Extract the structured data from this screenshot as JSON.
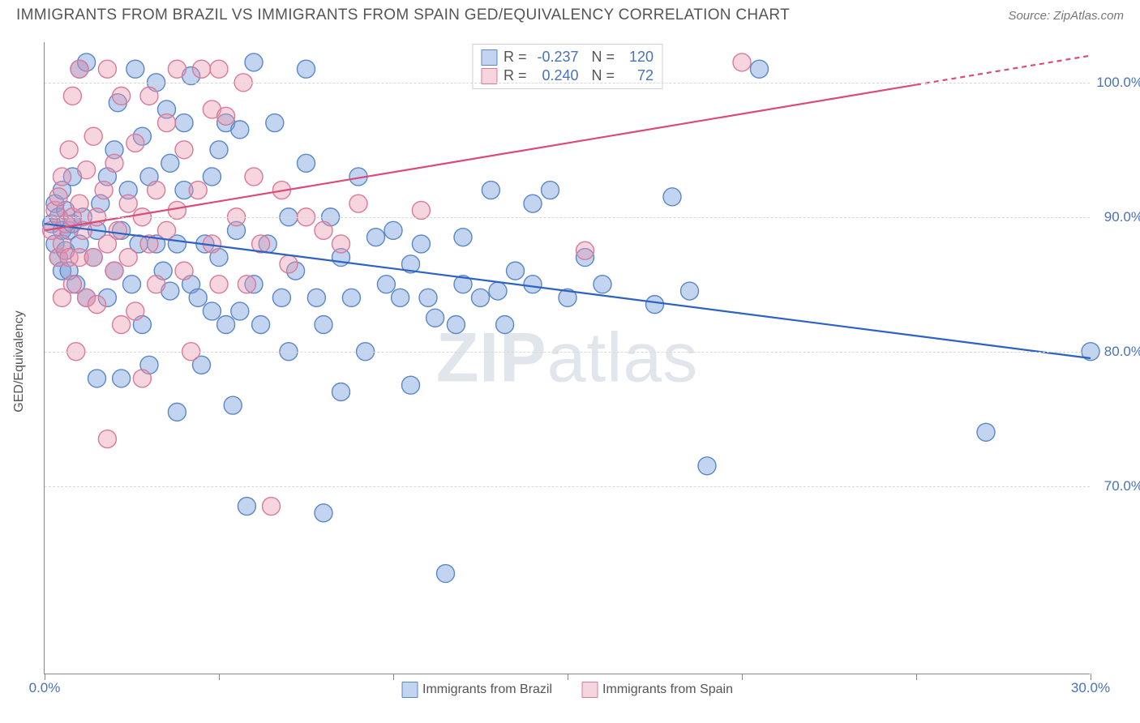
{
  "title": "IMMIGRANTS FROM BRAZIL VS IMMIGRANTS FROM SPAIN GED/EQUIVALENCY CORRELATION CHART",
  "source": "Source: ZipAtlas.com",
  "watermark": {
    "part1": "ZIP",
    "part2": "atlas"
  },
  "ylabel": "GED/Equivalency",
  "chart": {
    "type": "scatter",
    "background_color": "#ffffff",
    "grid_color": "#d8d8d8",
    "axis_color": "#888888",
    "text_color": "#555555",
    "value_color": "#4a72b8",
    "marker_radius": 11,
    "marker_stroke_width": 1.4,
    "line_width": 2.2,
    "xlim": [
      0,
      30
    ],
    "ylim": [
      56,
      103
    ],
    "x_ticks": [
      0,
      5,
      10,
      15,
      20,
      25,
      30
    ],
    "x_tick_labels": {
      "0": "0.0%",
      "30": "30.0%"
    },
    "y_gridlines": [
      70,
      80,
      90,
      100
    ],
    "y_tick_labels": {
      "70": "70.0%",
      "80": "80.0%",
      "90": "90.0%",
      "100": "100.0%"
    },
    "series": [
      {
        "name": "Immigrants from Brazil",
        "fill": "rgba(120,160,220,0.45)",
        "stroke": "#5b87c7",
        "line_color": "#2c62c0",
        "R": "-0.237",
        "N": "120",
        "trend": {
          "x1": 0,
          "y1": 89.5,
          "x2": 30,
          "y2": 79.5
        },
        "points": [
          [
            0.2,
            89.5
          ],
          [
            0.3,
            91
          ],
          [
            0.3,
            88
          ],
          [
            0.4,
            90
          ],
          [
            0.4,
            87
          ],
          [
            0.5,
            89
          ],
          [
            0.5,
            86
          ],
          [
            0.5,
            92
          ],
          [
            0.6,
            90.5
          ],
          [
            0.6,
            87.5
          ],
          [
            0.7,
            89
          ],
          [
            0.7,
            86
          ],
          [
            0.8,
            93
          ],
          [
            0.8,
            89.5
          ],
          [
            0.9,
            85
          ],
          [
            1.0,
            88
          ],
          [
            1.0,
            101
          ],
          [
            1.1,
            90
          ],
          [
            1.2,
            84
          ],
          [
            1.2,
            101.5
          ],
          [
            1.4,
            87
          ],
          [
            1.5,
            89
          ],
          [
            1.5,
            78
          ],
          [
            1.6,
            91
          ],
          [
            1.8,
            93
          ],
          [
            1.8,
            84
          ],
          [
            2.0,
            95
          ],
          [
            2.0,
            86
          ],
          [
            2.1,
            98.5
          ],
          [
            2.2,
            89
          ],
          [
            2.2,
            78
          ],
          [
            2.4,
            92
          ],
          [
            2.5,
            85
          ],
          [
            2.6,
            101
          ],
          [
            2.7,
            88
          ],
          [
            2.8,
            96
          ],
          [
            2.8,
            82
          ],
          [
            3.0,
            93
          ],
          [
            3.0,
            79
          ],
          [
            3.2,
            88
          ],
          [
            3.2,
            100
          ],
          [
            3.4,
            86
          ],
          [
            3.5,
            98
          ],
          [
            3.6,
            84.5
          ],
          [
            3.6,
            94
          ],
          [
            3.8,
            75.5
          ],
          [
            3.8,
            88
          ],
          [
            4.0,
            92
          ],
          [
            4.0,
            97
          ],
          [
            4.2,
            85
          ],
          [
            4.2,
            100.5
          ],
          [
            4.4,
            84
          ],
          [
            4.5,
            79
          ],
          [
            4.6,
            88
          ],
          [
            4.8,
            93
          ],
          [
            4.8,
            83
          ],
          [
            5.0,
            95
          ],
          [
            5.0,
            87
          ],
          [
            5.2,
            82
          ],
          [
            5.2,
            97
          ],
          [
            5.4,
            76
          ],
          [
            5.5,
            89
          ],
          [
            5.6,
            83
          ],
          [
            5.6,
            96.5
          ],
          [
            5.8,
            68.5
          ],
          [
            6.0,
            85
          ],
          [
            6.0,
            101.5
          ],
          [
            6.2,
            82
          ],
          [
            6.4,
            88
          ],
          [
            6.6,
            97
          ],
          [
            6.8,
            84
          ],
          [
            7.0,
            90
          ],
          [
            7.0,
            80
          ],
          [
            7.2,
            86
          ],
          [
            7.5,
            94
          ],
          [
            7.5,
            101
          ],
          [
            7.8,
            84
          ],
          [
            8.0,
            82
          ],
          [
            8.0,
            68
          ],
          [
            8.2,
            90
          ],
          [
            8.5,
            87
          ],
          [
            8.5,
            77
          ],
          [
            8.8,
            84
          ],
          [
            9.0,
            93
          ],
          [
            9.2,
            80
          ],
          [
            9.5,
            88.5
          ],
          [
            9.8,
            85
          ],
          [
            10.0,
            89
          ],
          [
            10.2,
            84
          ],
          [
            10.5,
            86.5
          ],
          [
            10.5,
            77.5
          ],
          [
            10.8,
            88
          ],
          [
            11.0,
            84
          ],
          [
            11.2,
            82.5
          ],
          [
            11.5,
            63.5
          ],
          [
            11.8,
            82
          ],
          [
            12.0,
            85
          ],
          [
            12.0,
            88.5
          ],
          [
            12.5,
            84
          ],
          [
            12.8,
            92
          ],
          [
            13.0,
            84.5
          ],
          [
            13.2,
            82
          ],
          [
            13.5,
            86
          ],
          [
            14.0,
            91
          ],
          [
            14.0,
            85
          ],
          [
            14.5,
            92
          ],
          [
            15.0,
            84
          ],
          [
            15.5,
            87
          ],
          [
            16.0,
            85
          ],
          [
            17.5,
            83.5
          ],
          [
            18.0,
            91.5
          ],
          [
            18.5,
            84.5
          ],
          [
            19.0,
            71.5
          ],
          [
            20.5,
            101
          ],
          [
            27.0,
            74
          ],
          [
            30,
            80
          ]
        ]
      },
      {
        "name": "Immigrants from Spain",
        "fill": "rgba(235,150,175,0.40)",
        "stroke": "#d97a9a",
        "line_color": "#d94b7a",
        "line_dash_after": 25,
        "R": "0.240",
        "N": "72",
        "trend": {
          "x1": 0,
          "y1": 89.0,
          "x2": 30,
          "y2": 102
        },
        "points": [
          [
            0.2,
            89
          ],
          [
            0.3,
            90.5
          ],
          [
            0.4,
            87
          ],
          [
            0.4,
            91.5
          ],
          [
            0.5,
            88
          ],
          [
            0.5,
            84
          ],
          [
            0.5,
            93
          ],
          [
            0.6,
            89.5
          ],
          [
            0.7,
            87
          ],
          [
            0.7,
            95
          ],
          [
            0.8,
            90
          ],
          [
            0.8,
            85
          ],
          [
            0.8,
            99
          ],
          [
            0.9,
            80
          ],
          [
            1.0,
            91
          ],
          [
            1.0,
            87
          ],
          [
            1.0,
            101
          ],
          [
            1.1,
            89
          ],
          [
            1.2,
            93.5
          ],
          [
            1.2,
            84
          ],
          [
            1.4,
            96
          ],
          [
            1.4,
            87
          ],
          [
            1.5,
            90
          ],
          [
            1.5,
            83.5
          ],
          [
            1.7,
            92
          ],
          [
            1.8,
            101
          ],
          [
            1.8,
            88
          ],
          [
            1.8,
            73.5
          ],
          [
            2.0,
            94
          ],
          [
            2.0,
            86
          ],
          [
            2.1,
            89
          ],
          [
            2.2,
            99
          ],
          [
            2.2,
            82
          ],
          [
            2.4,
            91
          ],
          [
            2.4,
            87
          ],
          [
            2.6,
            95.5
          ],
          [
            2.6,
            83
          ],
          [
            2.8,
            90
          ],
          [
            2.8,
            78
          ],
          [
            3.0,
            99
          ],
          [
            3.0,
            88
          ],
          [
            3.2,
            92
          ],
          [
            3.2,
            85
          ],
          [
            3.5,
            97
          ],
          [
            3.5,
            89
          ],
          [
            3.8,
            101
          ],
          [
            3.8,
            90.5
          ],
          [
            4.0,
            95
          ],
          [
            4.0,
            86
          ],
          [
            4.2,
            80
          ],
          [
            4.4,
            92
          ],
          [
            4.5,
            101
          ],
          [
            4.8,
            88
          ],
          [
            4.8,
            98
          ],
          [
            5.0,
            85
          ],
          [
            5.0,
            101
          ],
          [
            5.2,
            97.5
          ],
          [
            5.5,
            90
          ],
          [
            5.7,
            100
          ],
          [
            5.8,
            85
          ],
          [
            6.0,
            93
          ],
          [
            6.2,
            88
          ],
          [
            6.5,
            68.5
          ],
          [
            6.8,
            92
          ],
          [
            7.0,
            86.5
          ],
          [
            7.5,
            90
          ],
          [
            8.0,
            89
          ],
          [
            8.5,
            88
          ],
          [
            9.0,
            91
          ],
          [
            10.8,
            90.5
          ],
          [
            15.5,
            87.5
          ],
          [
            20.0,
            101.5
          ]
        ]
      }
    ],
    "legend_bottom": [
      {
        "label": "Immigrants from Brazil",
        "fill": "rgba(120,160,220,0.45)",
        "stroke": "#5b87c7"
      },
      {
        "label": "Immigrants from Spain",
        "fill": "rgba(235,150,175,0.40)",
        "stroke": "#d97a9a"
      }
    ]
  }
}
